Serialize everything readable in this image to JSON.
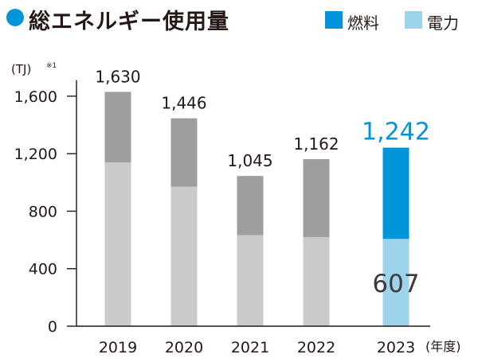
{
  "header": {
    "title": "総エネルギー使用量",
    "legend": [
      {
        "label": "燃料",
        "color": "#0095d9"
      },
      {
        "label": "電力",
        "color": "#9ed3ee"
      }
    ]
  },
  "chart_data": {
    "type": "bar",
    "stacked": true,
    "title": "総エネルギー使用量",
    "yunit": "(TJ)",
    "yunit_note": "※1",
    "xunit": "(年度)",
    "categories": [
      "2019",
      "2020",
      "2021",
      "2022",
      "2023"
    ],
    "ylim": [
      0,
      1700
    ],
    "yticks": [
      0,
      400,
      800,
      1200,
      1600
    ],
    "ytick_labels": [
      "0",
      "400",
      "800",
      "1,200",
      "1,600"
    ],
    "series": [
      {
        "name": "電力",
        "values": [
          1140,
          970,
          633,
          620,
          607
        ]
      },
      {
        "name": "燃料",
        "values": [
          490,
          476,
          412,
          542,
          635
        ]
      }
    ],
    "totals": [
      1630,
      1446,
      1045,
      1162,
      1242
    ],
    "total_labels": [
      "1,630",
      "1,446",
      "1,045",
      "1,162",
      "1,242"
    ],
    "highlight_index": 4,
    "highlight_label": "607",
    "colors": {
      "past_power": "#c9caca",
      "past_fuel": "#9e9e9f",
      "current_fuel": "#0095d9",
      "current_power": "#9ed3ee",
      "highlight_total_text": "#0095d9"
    }
  }
}
